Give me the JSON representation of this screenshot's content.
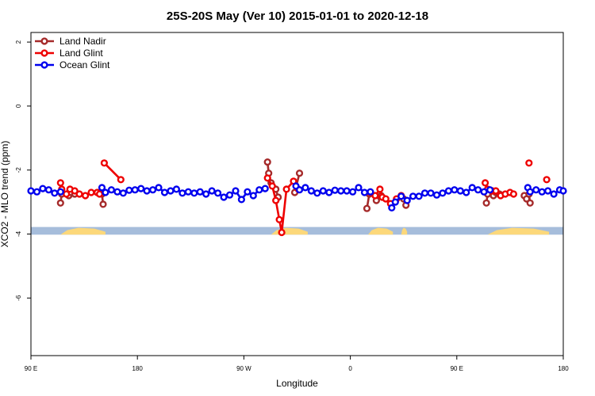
{
  "chart_data": {
    "type": "line",
    "title": "25S-20S May (Ver 10)   2015-01-01 to 2020-12-18",
    "xlabel": "Longitude",
    "ylabel": "XCO2 - MLO trend (ppm)",
    "xlim": [
      0,
      450
    ],
    "ylim": [
      -7.8,
      2.3
    ],
    "x_ticks": [
      {
        "pos": 0,
        "label": "90 E"
      },
      {
        "pos": 90,
        "label": "180"
      },
      {
        "pos": 180,
        "label": "90 W"
      },
      {
        "pos": 270,
        "label": "0"
      },
      {
        "pos": 360,
        "label": "90 E"
      },
      {
        "pos": 450,
        "label": "180"
      }
    ],
    "y_ticks": [
      2,
      0,
      -2,
      -4,
      -6
    ],
    "grid": false,
    "legend_position": "top-left",
    "map_strip": {
      "y_from": -3.78,
      "y_to": -4.02,
      "ocean_color": "#a6bddb",
      "land_color": "#fcd87a",
      "land_ranges": [
        [
          25,
          63
        ],
        [
          203,
          234
        ],
        [
          285,
          306
        ],
        [
          313,
          318
        ],
        [
          386,
          438
        ]
      ]
    },
    "series": [
      {
        "name": "Land Nadir",
        "color": "#a52a2a",
        "segments": [
          [
            [
              25,
              -3.03
            ],
            [
              26,
              -2.75
            ]
          ],
          [
            [
              32,
              -2.8
            ],
            [
              34,
              -2.7
            ],
            [
              37,
              -2.75
            ]
          ],
          [
            [
              60,
              -2.75
            ],
            [
              61,
              -3.07
            ]
          ],
          [
            [
              200,
              -1.75
            ],
            [
              201,
              -2.1
            ],
            [
              203,
              -2.4
            ],
            [
              207,
              -2.6
            ],
            [
              209,
              -2.85
            ]
          ],
          [
            [
              223,
              -2.7
            ],
            [
              227,
              -2.1
            ]
          ],
          [
            [
              284,
              -3.2
            ],
            [
              286,
              -2.75
            ]
          ],
          [
            [
              292,
              -2.95
            ],
            [
              296,
              -2.8
            ]
          ],
          [
            [
              315,
              -2.9
            ],
            [
              317,
              -3.1
            ]
          ],
          [
            [
              385,
              -3.03
            ],
            [
              386,
              -2.75
            ]
          ],
          [
            [
              391,
              -2.8
            ],
            [
              393,
              -2.7
            ],
            [
              396,
              -2.75
            ]
          ],
          [
            [
              417,
              -2.8
            ],
            [
              419,
              -2.9
            ],
            [
              421,
              -2.75
            ],
            [
              422,
              -3.03
            ]
          ]
        ]
      },
      {
        "name": "Land Glint",
        "color": "#ee0000",
        "segments": [
          [
            [
              25,
              -2.4
            ],
            [
              26,
              -2.6
            ],
            [
              30,
              -2.75
            ],
            [
              33,
              -2.6
            ],
            [
              37,
              -2.65
            ],
            [
              41,
              -2.75
            ],
            [
              46,
              -2.8
            ],
            [
              51,
              -2.7
            ],
            [
              56,
              -2.7
            ],
            [
              58,
              -2.75
            ]
          ],
          [
            [
              62,
              -1.78
            ],
            [
              76,
              -2.3
            ]
          ],
          [
            [
              200,
              -2.25
            ],
            [
              204,
              -2.5
            ],
            [
              207,
              -2.95
            ],
            [
              210,
              -3.55
            ],
            [
              212,
              -3.95
            ],
            [
              216,
              -2.6
            ],
            [
              222,
              -2.35
            ],
            [
              226,
              -2.6
            ]
          ],
          [
            [
              287,
              -2.7
            ],
            [
              291,
              -2.8
            ],
            [
              295,
              -2.6
            ],
            [
              297,
              -2.85
            ],
            [
              300,
              -2.9
            ],
            [
              304,
              -3.05
            ],
            [
              309,
              -2.9
            ],
            [
              313,
              -2.8
            ]
          ],
          [
            [
              384,
              -2.4
            ],
            [
              386,
              -2.6
            ],
            [
              390,
              -2.65
            ],
            [
              393,
              -2.65
            ],
            [
              397,
              -2.8
            ],
            [
              401,
              -2.75
            ],
            [
              405,
              -2.7
            ],
            [
              408,
              -2.75
            ]
          ],
          [
            [
              421,
              -1.78
            ]
          ],
          [
            [
              436,
              -2.3
            ]
          ]
        ]
      },
      {
        "name": "Ocean Glint",
        "color": "#0000ee",
        "segments": [
          [
            [
              0,
              -2.65
            ],
            [
              5,
              -2.68
            ],
            [
              10,
              -2.58
            ],
            [
              15,
              -2.62
            ],
            [
              20,
              -2.72
            ],
            [
              25,
              -2.68
            ]
          ],
          [
            [
              60,
              -2.55
            ],
            [
              63,
              -2.7
            ],
            [
              68,
              -2.62
            ],
            [
              73,
              -2.68
            ],
            [
              78,
              -2.72
            ],
            [
              83,
              -2.63
            ],
            [
              88,
              -2.62
            ],
            [
              93,
              -2.58
            ],
            [
              98,
              -2.65
            ],
            [
              103,
              -2.62
            ],
            [
              108,
              -2.55
            ],
            [
              113,
              -2.7
            ],
            [
              118,
              -2.65
            ],
            [
              123,
              -2.6
            ],
            [
              128,
              -2.72
            ],
            [
              133,
              -2.68
            ],
            [
              138,
              -2.72
            ],
            [
              143,
              -2.68
            ],
            [
              148,
              -2.75
            ],
            [
              153,
              -2.65
            ],
            [
              158,
              -2.72
            ],
            [
              163,
              -2.85
            ],
            [
              168,
              -2.78
            ],
            [
              173,
              -2.65
            ],
            [
              178,
              -2.92
            ],
            [
              183,
              -2.68
            ],
            [
              188,
              -2.8
            ],
            [
              193,
              -2.62
            ],
            [
              198,
              -2.58
            ]
          ],
          [
            [
              224,
              -2.5
            ],
            [
              227,
              -2.62
            ],
            [
              232,
              -2.55
            ],
            [
              237,
              -2.65
            ],
            [
              242,
              -2.72
            ],
            [
              247,
              -2.65
            ],
            [
              252,
              -2.7
            ],
            [
              257,
              -2.63
            ],
            [
              262,
              -2.65
            ],
            [
              267,
              -2.65
            ],
            [
              272,
              -2.68
            ],
            [
              277,
              -2.55
            ],
            [
              282,
              -2.7
            ],
            [
              287,
              -2.68
            ]
          ],
          [
            [
              305,
              -3.18
            ],
            [
              308,
              -3.0
            ],
            [
              313,
              -2.82
            ],
            [
              318,
              -2.95
            ],
            [
              323,
              -2.82
            ],
            [
              328,
              -2.82
            ],
            [
              333,
              -2.72
            ],
            [
              338,
              -2.72
            ],
            [
              343,
              -2.78
            ],
            [
              348,
              -2.72
            ],
            [
              353,
              -2.65
            ],
            [
              358,
              -2.62
            ],
            [
              363,
              -2.65
            ],
            [
              368,
              -2.7
            ],
            [
              373,
              -2.55
            ],
            [
              378,
              -2.62
            ],
            [
              383,
              -2.68
            ],
            [
              388,
              -2.62
            ]
          ],
          [
            [
              420,
              -2.55
            ],
            [
              422,
              -2.68
            ],
            [
              427,
              -2.62
            ],
            [
              432,
              -2.68
            ],
            [
              437,
              -2.65
            ],
            [
              442,
              -2.75
            ],
            [
              447,
              -2.62
            ],
            [
              450,
              -2.65
            ]
          ]
        ]
      }
    ]
  }
}
